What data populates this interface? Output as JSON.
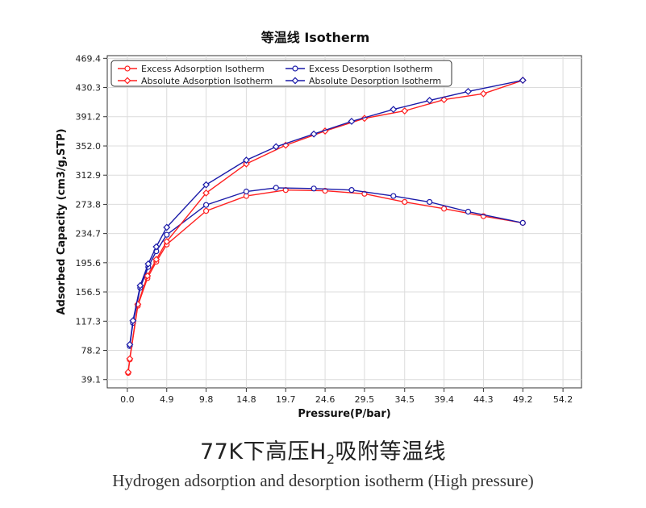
{
  "chart_data": {
    "type": "line",
    "title": "等温线 Isotherm",
    "xlabel": "Pressure(P/bar)",
    "ylabel": "Adsorbed Capacity (cm3/g,STP)",
    "xlim": [
      -2.5,
      56.5
    ],
    "ylim": [
      28,
      473
    ],
    "x_ticks": [
      "0.0",
      "4.9",
      "9.8",
      "14.8",
      "19.7",
      "24.6",
      "29.5",
      "34.5",
      "39.4",
      "44.3",
      "49.2",
      "54.2"
    ],
    "y_ticks": [
      "39.1",
      "78.2",
      "117.3",
      "156.5",
      "195.6",
      "234.7",
      "273.8",
      "312.9",
      "352.0",
      "391.2",
      "430.3",
      "469.4"
    ],
    "grid": true,
    "legend_position": "top-left",
    "series": [
      {
        "name": "Excess Adsorption Isotherm",
        "color": "#ff2020",
        "x": [
          0.1,
          0.3,
          1.3,
          2.5,
          3.6,
          4.9,
          9.8,
          14.8,
          19.7,
          24.6,
          29.5,
          34.5,
          39.4,
          44.3,
          49.2
        ],
        "y": [
          48,
          66,
          138,
          175,
          197,
          220,
          265,
          285,
          293,
          292,
          288,
          277,
          268,
          258,
          249
        ]
      },
      {
        "name": "Excess Desorption Isotherm",
        "color": "#1a1aa8",
        "x": [
          0.3,
          0.7,
          1.6,
          2.6,
          3.6,
          4.9,
          9.8,
          14.8,
          18.5,
          23.2,
          27.9,
          33.1,
          37.6,
          42.4,
          49.2
        ],
        "y": [
          84,
          115,
          162,
          190,
          211,
          233,
          273,
          291,
          296,
          295,
          293,
          285,
          277,
          264,
          249
        ]
      },
      {
        "name": "Absolute Adsorption Isotherm",
        "color": "#ff2020",
        "x": [
          0.1,
          0.3,
          1.3,
          2.5,
          3.6,
          4.9,
          9.8,
          14.8,
          19.7,
          24.6,
          29.5,
          34.5,
          39.4,
          44.3,
          49.2
        ],
        "y": [
          49,
          67,
          140,
          178,
          200,
          224,
          289,
          328,
          353,
          372,
          389,
          399,
          414,
          422,
          440
        ]
      },
      {
        "name": "Absolute Desorption Isotherm",
        "color": "#1a1aa8",
        "x": [
          0.3,
          0.7,
          1.6,
          2.6,
          3.6,
          4.9,
          9.8,
          14.8,
          18.5,
          23.2,
          27.9,
          33.1,
          37.6,
          42.4,
          49.2
        ],
        "y": [
          86,
          118,
          165,
          194,
          217,
          243,
          300,
          333,
          351,
          368,
          385,
          401,
          413,
          425,
          440
        ]
      }
    ]
  },
  "caption": {
    "zh_main": "77K下高压H",
    "zh_sub": "2",
    "zh_tail": "吸附等温线",
    "en": "Hydrogen adsorption and desorption isotherm (High pressure)"
  }
}
